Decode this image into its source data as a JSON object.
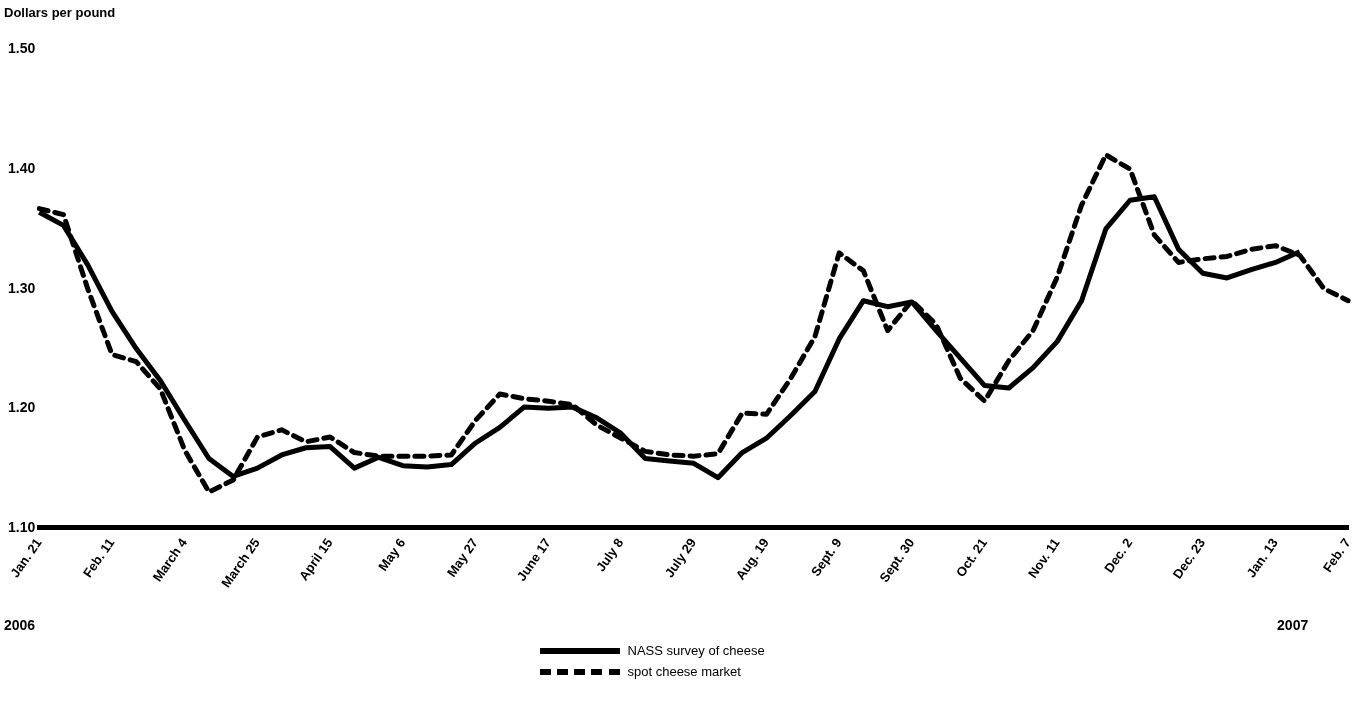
{
  "chart_data": {
    "type": "line",
    "ylabel": "Dollars per pound",
    "categories": [
      "Jan. 21",
      null,
      null,
      "Feb. 11",
      null,
      null,
      "March 4",
      null,
      null,
      "March 25",
      null,
      null,
      "April 15",
      null,
      null,
      "May 6",
      null,
      null,
      "May 27",
      null,
      null,
      "June 17",
      null,
      null,
      "July 8",
      null,
      null,
      "July 29",
      null,
      null,
      "Aug. 19",
      null,
      null,
      "Sept. 9",
      null,
      null,
      "Sept. 30",
      null,
      null,
      "Oct. 21",
      null,
      null,
      "Nov. 11",
      null,
      null,
      "Dec. 2",
      null,
      null,
      "Dec. 23",
      null,
      null,
      "Jan. 13",
      null,
      null,
      "Feb. 7"
    ],
    "series": [
      {
        "name": "NASS survey of cheese",
        "color": "#000000",
        "line_style": "solid",
        "values": [
          1.364,
          1.353,
          1.32,
          1.281,
          1.25,
          1.223,
          1.19,
          1.158,
          1.143,
          1.15,
          1.161,
          1.167,
          1.168,
          1.15,
          1.159,
          1.152,
          1.151,
          1.153,
          1.171,
          1.184,
          1.201,
          1.2,
          1.201,
          1.192,
          1.179,
          1.158,
          1.156,
          1.154,
          1.142,
          1.163,
          1.175,
          1.194,
          1.214,
          1.258,
          1.29,
          1.285,
          1.289,
          1.265,
          1.242,
          1.219,
          1.217,
          1.234,
          1.256,
          1.29,
          1.35,
          1.374,
          1.377,
          1.333,
          1.313,
          1.309,
          1.316,
          1.322,
          1.331,
          null,
          null
        ]
      },
      {
        "name": "spot cheese market",
        "color": "#000000",
        "line_style": "dashed",
        "values": [
          1.367,
          1.362,
          1.3,
          1.245,
          1.239,
          1.216,
          1.165,
          1.13,
          1.14,
          1.176,
          1.182,
          1.172,
          1.176,
          1.163,
          1.16,
          1.16,
          1.16,
          1.161,
          1.19,
          1.212,
          1.208,
          1.206,
          1.203,
          1.186,
          1.175,
          1.164,
          1.161,
          1.16,
          1.162,
          1.196,
          1.195,
          1.225,
          1.26,
          1.33,
          1.315,
          1.265,
          1.29,
          1.27,
          1.225,
          1.206,
          1.24,
          1.265,
          1.31,
          1.37,
          1.412,
          1.4,
          1.345,
          1.322,
          1.325,
          1.327,
          1.333,
          1.336,
          1.328,
          1.3,
          1.29
        ]
      }
    ],
    "ylim": [
      1.1,
      1.5
    ],
    "yticks": [
      {
        "value": 1.1,
        "label": "1.10"
      },
      {
        "value": 1.2,
        "label": "1.20"
      },
      {
        "value": 1.3,
        "label": "1.30"
      },
      {
        "value": 1.4,
        "label": "1.40"
      },
      {
        "value": 1.5,
        "label": "1.50"
      }
    ],
    "annotations": [
      "2006",
      "2007"
    ],
    "legend": "bottom",
    "grid": false,
    "marker": "none"
  }
}
